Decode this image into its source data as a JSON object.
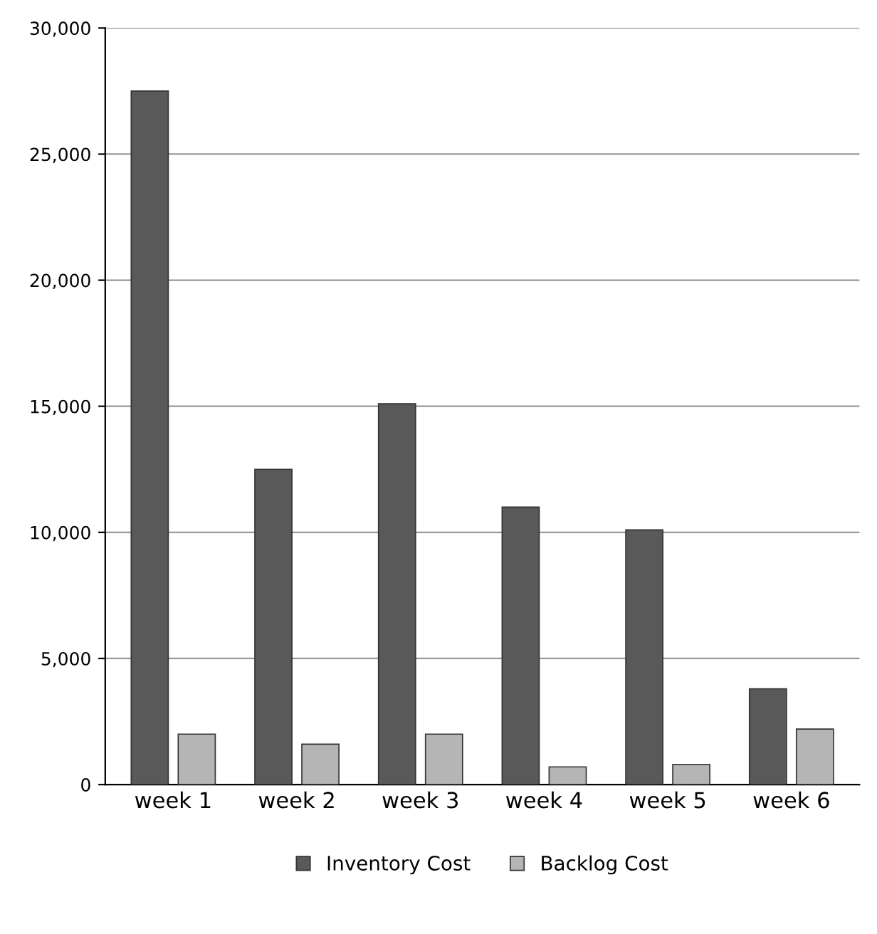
{
  "chart_data": {
    "type": "bar",
    "categories": [
      "week 1",
      "week 2",
      "week 3",
      "week 4",
      "week 5",
      "week 6"
    ],
    "series": [
      {
        "name": "Inventory Cost",
        "color": "#595959",
        "values": [
          27500,
          12500,
          15100,
          11000,
          10100,
          3800
        ]
      },
      {
        "name": "Backlog Cost",
        "color": "#b5b5b5",
        "values": [
          2000,
          1600,
          2000,
          700,
          800,
          2200
        ]
      }
    ],
    "ylim": [
      0,
      30000
    ],
    "yticks": [
      {
        "value": 0,
        "label": "0"
      },
      {
        "value": 5000,
        "label": "5,000"
      },
      {
        "value": 10000,
        "label": "10,000"
      },
      {
        "value": 15000,
        "label": "15,000"
      },
      {
        "value": 20000,
        "label": "20,000"
      },
      {
        "value": 25000,
        "label": "25,000"
      },
      {
        "value": 30000,
        "label": "30,000"
      }
    ],
    "grid": "y",
    "legend": "bottom"
  }
}
